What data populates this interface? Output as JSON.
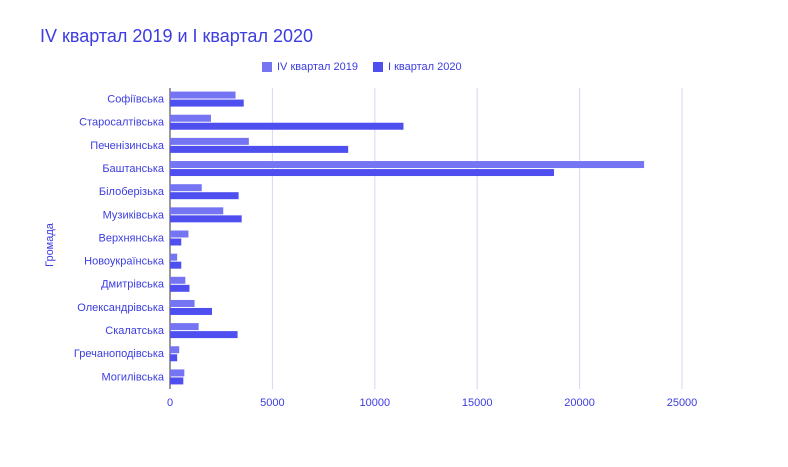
{
  "chart_data": {
    "type": "hbar",
    "title": "IV квартал 2019 и I квартал 2020",
    "y_label": "Громада",
    "categories": [
      "Софіївська",
      "Старосалтівська",
      "Печенізинська",
      "Баштанська",
      "Білоберізька",
      "Музиківська",
      "Верхнянська",
      "Новоукраїнська",
      "Дмитрівська",
      "Олександрівська",
      "Скалатська",
      "Гречаноподівська",
      "Могилівська"
    ],
    "series": [
      {
        "name": "IV квартал 2019",
        "color": "#7575f3",
        "values": [
          3200,
          2000,
          3850,
          23150,
          1550,
          2600,
          900,
          350,
          750,
          1200,
          1400,
          450,
          700
        ]
      },
      {
        "name": "I квартал 2020",
        "color": "#4f4fef",
        "values": [
          3600,
          11400,
          8700,
          18750,
          3350,
          3500,
          550,
          550,
          950,
          2050,
          3300,
          350,
          650
        ]
      }
    ],
    "xlim": [
      0,
      25000
    ],
    "xticks": [
      0,
      5000,
      10000,
      15000,
      20000,
      25000
    ],
    "grid": true
  }
}
